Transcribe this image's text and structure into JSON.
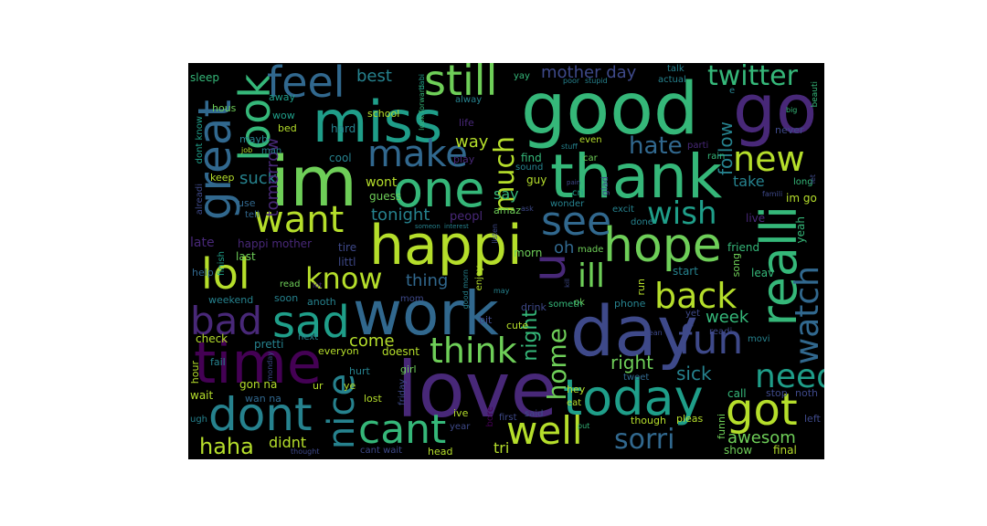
{
  "palette": {
    "background": "#000000",
    "page": "#ffffff",
    "colors": [
      "#440154",
      "#482878",
      "#3e4989",
      "#31688e",
      "#26828e",
      "#1f9e89",
      "#35b779",
      "#6ece58",
      "#b5de2b",
      "#fde725"
    ]
  },
  "words": {
    "good": "good",
    "im": "im",
    "miss": "miss",
    "thank": "thank",
    "love": "love",
    "day": "day",
    "work": "work",
    "happi": "happi",
    "go": "go",
    "today": "today",
    "time": "time",
    "dont": "dont",
    "one": "one",
    "got": "got",
    "lol": "lol",
    "hope": "hope",
    "realli": "realli",
    "great": "great",
    "still": "still",
    "feel": "feel",
    "look": "look",
    "make": "make",
    "want": "want",
    "see": "see",
    "sad": "sad",
    "bad": "bad",
    "cant": "cant",
    "well": "well",
    "know": "know",
    "back": "back",
    "watch": "watch",
    "new": "new",
    "fun": "fun",
    "think": "think",
    "need": "need",
    "nice": "nice",
    "wish": "wish",
    "much": "much",
    "twitter": "twitter",
    "haha": "haha",
    "u": "u",
    "ill": "ill",
    "sorri": "sorri",
    "hate": "hate",
    "home": "home",
    "night": "night",
    "tonight": "tonight",
    "awesom": "awesom",
    "right": "right",
    "sick": "sick",
    "best": "best",
    "mother_day": "mother day",
    "follow": "follow",
    "way": "way",
    "suck": "suck",
    "tri": "tri",
    "come": "come",
    "thing": "thing",
    "didnt": "didnt",
    "week": "week",
    "take": "take",
    "oh": "oh",
    "tomorrow": "tomorrow",
    "say": "say",
    "late": "late",
    "happi_mother": "happi mother",
    "gon_na": "gon na",
    "peopl": "peopl",
    "wont": "wont",
    "guess": "guess",
    "amaz": "amaz",
    "friend": "friend",
    "start": "start",
    "leav": "leav",
    "song": "song",
    "yeah": "yeah",
    "im_go": "im go",
    "live": "live",
    "call": "call",
    "show": "show",
    "final": "final",
    "funni": "funni",
    "left": "left",
    "stop": "stop",
    "noth": "noth",
    "hous": "hous",
    "sleep": "sleep",
    "away": "away",
    "wow": "wow",
    "bed": "bed",
    "mayb": "mayb",
    "man": "man",
    "job": "job",
    "school": "school",
    "hard": "hard",
    "cool": "cool",
    "keep": "keep",
    "use": "use",
    "tell": "tell",
    "alreadi": "alreadi",
    "dont_know": "dont know",
    "last": "last",
    "littl": "littl",
    "tire": "tire",
    "help": "help",
    "finish": "finish",
    "weekend": "weekend",
    "soon": "soon",
    "anoth": "anoth",
    "read": "read",
    "lot": "lot",
    "check": "check",
    "pretti": "pretti",
    "next": "next",
    "everyon": "everyon",
    "doesnt": "doesnt",
    "hour": "hour",
    "fail": "fail",
    "wait": "wait",
    "ugh": "ugh",
    "wan_na": "wan na",
    "ur": "ur",
    "ye": "ye",
    "hurt": "hurt",
    "lost": "lost",
    "girl": "girl",
    "friday": "friday",
    "thought": "thought",
    "cant_wait": "cant wait",
    "head": "head",
    "year": "year",
    "ive": "ive",
    "first": "first",
    "said": "said",
    "bore": "bore",
    "cute": "cute",
    "bit": "bit",
    "enjoy": "enjoy",
    "drink": "drink",
    "morn": "morn",
    "mom": "mom",
    "made": "made",
    "hey": "hey",
    "eat": "eat",
    "ok": "ok",
    "someth": "someth",
    "phone": "phone",
    "run": "run",
    "done": "done",
    "excit": "excit",
    "wonder": "wonder",
    "guy": "guy",
    "sound": "sound",
    "find": "find",
    "play": "play",
    "even": "even",
    "parti": "parti",
    "car": "car",
    "life": "life",
    "alway": "alway",
    "yay": "yay",
    "poor": "poor",
    "stupid": "stupid",
    "actual": "actual",
    "talk": "talk",
    "beauti": "beauti",
    "big": "big",
    "never": "never",
    "rain": "rain",
    "long": "long",
    "famili": "famili",
    "let": "let",
    "yet": "yet",
    "readi": "readi",
    "movi": "movi",
    "mean": "mean",
    "tweet": "tweet",
    "though": "though",
    "pleas": "pleas",
    "put": "put",
    "look_forward": "look forward",
    "babi": "babi",
    "cri": "cri",
    "glad": "glad",
    "ask": "ask",
    "someon": "someon",
    "interest": "interest",
    "listen": "listen",
    "may": "may",
    "good_morn": "good morn",
    "pain": "pain",
    "stuff": "stuff",
    "kill": "kill",
    "monday": "monday",
    "e": "e"
  }
}
